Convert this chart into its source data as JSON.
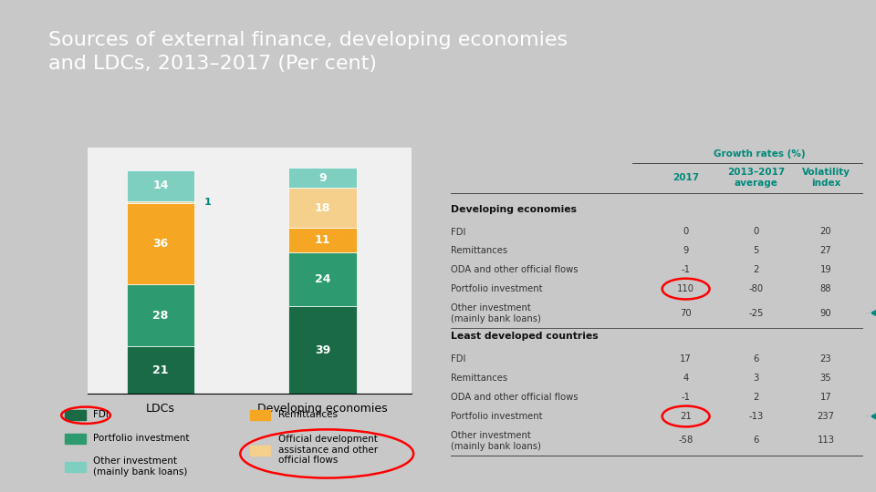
{
  "title": "Sources of external finance, developing economies\nand LDCs, 2013–2017 (Per cent)",
  "title_bg": "#5a5a5a",
  "title_color": "#ffffff",
  "accent_bar_color": "#e8a020",
  "teal_bar_color": "#00897b",
  "bg_color": "#c8c8c8",
  "chart_bg": "#f0f0f0",
  "table_bg": "#f0f0f0",
  "categories": [
    "LDCs",
    "Developing economies"
  ],
  "bar_order": [
    "FDI",
    "Portfolio investment",
    "Remittances",
    "ODA",
    "Other investment"
  ],
  "bar_data": {
    "LDCs": {
      "FDI": 21,
      "Portfolio investment": 28,
      "Remittances": 36,
      "ODA": 1,
      "Other investment": 14
    },
    "Developing economies": {
      "FDI": 39,
      "Portfolio investment": 24,
      "Remittances": 11,
      "ODA": 18,
      "Other investment": 9
    }
  },
  "colors": {
    "FDI": "#1a6b45",
    "Portfolio investment": "#2d9b6f",
    "Remittances": "#f5a623",
    "ODA": "#f5d08c",
    "Other investment": "#7ecfc0"
  },
  "legend_col1": [
    {
      "label": "FDI",
      "color": "#1a6b45",
      "circle": true
    },
    {
      "label": "Portfolio investment",
      "color": "#2d9b6f",
      "circle": false
    },
    {
      "label": "Other investment\n(mainly bank loans)",
      "color": "#7ecfc0",
      "circle": false
    }
  ],
  "legend_col2": [
    {
      "label": "Remittances",
      "color": "#f5a623",
      "circle": false
    },
    {
      "label": "Official development\nassistance and other\nofficial flows",
      "color": "#f5d08c",
      "circle": true
    }
  ],
  "growth_rates_label": "Growth rates (%)",
  "col_headers": [
    "2017",
    "2013–2017\naverage",
    "Volatility\nindex"
  ],
  "teal_color": "#00897b",
  "table_data": [
    {
      "group": "Developing economies",
      "bold_group": true,
      "rows": [
        {
          "label": "FDI",
          "v2017": "0",
          "avg": "0",
          "vol": "20",
          "circle_2017": false,
          "arrow_vol": false
        },
        {
          "label": "Remittances",
          "v2017": "9",
          "avg": "5",
          "vol": "27",
          "circle_2017": false,
          "arrow_vol": false
        },
        {
          "label": "ODA and other official flows",
          "v2017": "-1",
          "avg": "2",
          "vol": "19",
          "circle_2017": false,
          "arrow_vol": false
        },
        {
          "label": "Portfolio investment",
          "v2017": "110",
          "avg": "-80",
          "vol": "88",
          "circle_2017": true,
          "arrow_vol": false
        },
        {
          "label": "Other investment\n(mainly bank loans)",
          "v2017": "70",
          "avg": "-25",
          "vol": "90",
          "circle_2017": false,
          "arrow_vol": true
        }
      ]
    },
    {
      "group": "Least developed countries",
      "bold_group": true,
      "rows": [
        {
          "label": "FDI",
          "v2017": "17",
          "avg": "6",
          "vol": "23",
          "circle_2017": false,
          "arrow_vol": false
        },
        {
          "label": "Remittances",
          "v2017": "4",
          "avg": "3",
          "vol": "35",
          "circle_2017": false,
          "arrow_vol": false
        },
        {
          "label": "ODA and other official flows",
          "v2017": "-1",
          "avg": "2",
          "vol": "17",
          "circle_2017": false,
          "arrow_vol": false
        },
        {
          "label": "Portfolio investment",
          "v2017": "21",
          "avg": "-13",
          "vol": "237",
          "circle_2017": true,
          "arrow_vol": true
        },
        {
          "label": "Other investment\n(mainly bank loans)",
          "v2017": "-58",
          "avg": "6",
          "vol": "113",
          "circle_2017": false,
          "arrow_vol": false
        }
      ]
    }
  ]
}
